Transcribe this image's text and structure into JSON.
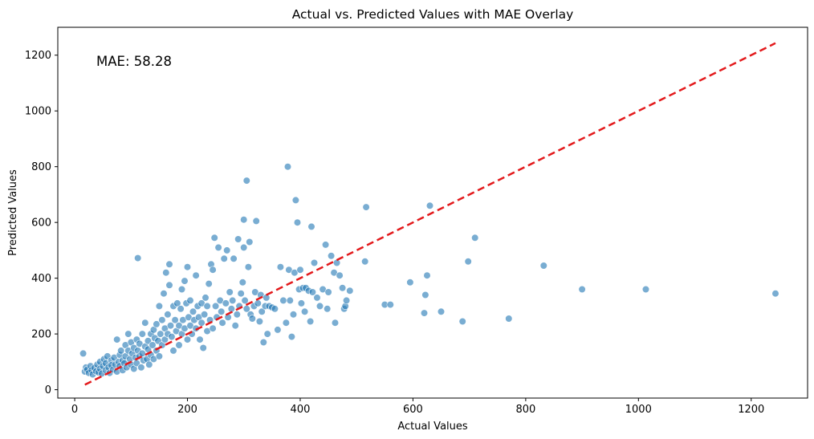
{
  "chart_data": {
    "type": "scatter",
    "title": "Actual vs. Predicted Values with MAE Overlay",
    "xlabel": "Actual Values",
    "ylabel": "Predicted Values",
    "xlim": [
      -30,
      1300
    ],
    "ylim": [
      -30,
      1300
    ],
    "xticks": [
      0,
      200,
      400,
      600,
      800,
      1000,
      1200
    ],
    "yticks": [
      0,
      200,
      400,
      600,
      800,
      1000,
      1200
    ],
    "annotation": "MAE: 58.28",
    "grid": false,
    "colors": {
      "points": "#1f77b4",
      "reference_line": "#e31a1c"
    },
    "reference_line": {
      "style": "dashed",
      "from": [
        18,
        18
      ],
      "to": [
        1243,
        1243
      ]
    },
    "points": [
      [
        15,
        130
      ],
      [
        18,
        65
      ],
      [
        20,
        80
      ],
      [
        22,
        72
      ],
      [
        25,
        60
      ],
      [
        28,
        85
      ],
      [
        30,
        70
      ],
      [
        32,
        55
      ],
      [
        35,
        78
      ],
      [
        38,
        66
      ],
      [
        40,
        90
      ],
      [
        42,
        62
      ],
      [
        45,
        100
      ],
      [
        45,
        75
      ],
      [
        48,
        58
      ],
      [
        50,
        85
      ],
      [
        52,
        110
      ],
      [
        55,
        70
      ],
      [
        55,
        95
      ],
      [
        58,
        120
      ],
      [
        60,
        80
      ],
      [
        62,
        60
      ],
      [
        65,
        105
      ],
      [
        65,
        88
      ],
      [
        68,
        72
      ],
      [
        70,
        115
      ],
      [
        72,
        90
      ],
      [
        75,
        180
      ],
      [
        75,
        65
      ],
      [
        78,
        100
      ],
      [
        80,
        125
      ],
      [
        80,
        85
      ],
      [
        82,
        140
      ],
      [
        85,
        70
      ],
      [
        85,
        105
      ],
      [
        88,
        95
      ],
      [
        90,
        160
      ],
      [
        90,
        120
      ],
      [
        92,
        80
      ],
      [
        95,
        200
      ],
      [
        95,
        140
      ],
      [
        98,
        110
      ],
      [
        100,
        170
      ],
      [
        100,
        90
      ],
      [
        102,
        130
      ],
      [
        105,
        75
      ],
      [
        105,
        150
      ],
      [
        108,
        115
      ],
      [
        110,
        180
      ],
      [
        110,
        95
      ],
      [
        112,
        472
      ],
      [
        112,
        140
      ],
      [
        115,
        120
      ],
      [
        115,
        165
      ],
      [
        118,
        80
      ],
      [
        120,
        200
      ],
      [
        120,
        130
      ],
      [
        122,
        105
      ],
      [
        125,
        155
      ],
      [
        125,
        240
      ],
      [
        128,
        110
      ],
      [
        130,
        175
      ],
      [
        130,
        145
      ],
      [
        132,
        90
      ],
      [
        135,
        200
      ],
      [
        135,
        125
      ],
      [
        138,
        160
      ],
      [
        140,
        110
      ],
      [
        140,
        215
      ],
      [
        142,
        185
      ],
      [
        145,
        140
      ],
      [
        145,
        235
      ],
      [
        148,
        175
      ],
      [
        150,
        120
      ],
      [
        150,
        300
      ],
      [
        152,
        200
      ],
      [
        155,
        160
      ],
      [
        155,
        250
      ],
      [
        158,
        345
      ],
      [
        160,
        220
      ],
      [
        160,
        180
      ],
      [
        162,
        420
      ],
      [
        165,
        200
      ],
      [
        165,
        270
      ],
      [
        168,
        450
      ],
      [
        168,
        375
      ],
      [
        170,
        230
      ],
      [
        172,
        190
      ],
      [
        175,
        300
      ],
      [
        175,
        140
      ],
      [
        178,
        250
      ],
      [
        180,
        210
      ],
      [
        182,
        310
      ],
      [
        185,
        160
      ],
      [
        185,
        230
      ],
      [
        188,
        290
      ],
      [
        190,
        200
      ],
      [
        190,
        360
      ],
      [
        192,
        250
      ],
      [
        195,
        390
      ],
      [
        195,
        220
      ],
      [
        198,
        310
      ],
      [
        200,
        440
      ],
      [
        200,
        180
      ],
      [
        202,
        260
      ],
      [
        205,
        230
      ],
      [
        205,
        320
      ],
      [
        208,
        200
      ],
      [
        210,
        280
      ],
      [
        212,
        250
      ],
      [
        215,
        220
      ],
      [
        215,
        410
      ],
      [
        218,
        300
      ],
      [
        220,
        260
      ],
      [
        222,
        180
      ],
      [
        225,
        240
      ],
      [
        225,
        310
      ],
      [
        228,
        150
      ],
      [
        230,
        270
      ],
      [
        232,
        330
      ],
      [
        235,
        210
      ],
      [
        235,
        300
      ],
      [
        238,
        380
      ],
      [
        240,
        250
      ],
      [
        242,
        450
      ],
      [
        245,
        220
      ],
      [
        245,
        430
      ],
      [
        248,
        545
      ],
      [
        250,
        300
      ],
      [
        252,
        260
      ],
      [
        255,
        510
      ],
      [
        258,
        320
      ],
      [
        260,
        280
      ],
      [
        262,
        240
      ],
      [
        265,
        470
      ],
      [
        268,
        310
      ],
      [
        270,
        500
      ],
      [
        272,
        260
      ],
      [
        275,
        350
      ],
      [
        278,
        290
      ],
      [
        280,
        320
      ],
      [
        282,
        470
      ],
      [
        285,
        230
      ],
      [
        288,
        270
      ],
      [
        290,
        540
      ],
      [
        292,
        300
      ],
      [
        295,
        345
      ],
      [
        298,
        385
      ],
      [
        300,
        610
      ],
      [
        300,
        510
      ],
      [
        302,
        320
      ],
      [
        305,
        750
      ],
      [
        305,
        290
      ],
      [
        308,
        440
      ],
      [
        310,
        530
      ],
      [
        312,
        270
      ],
      [
        315,
        255
      ],
      [
        318,
        300
      ],
      [
        320,
        350
      ],
      [
        322,
        605
      ],
      [
        325,
        310
      ],
      [
        328,
        245
      ],
      [
        330,
        340
      ],
      [
        332,
        280
      ],
      [
        335,
        170
      ],
      [
        338,
        300
      ],
      [
        340,
        330
      ],
      [
        342,
        200
      ],
      [
        345,
        300
      ],
      [
        350,
        295
      ],
      [
        355,
        290
      ],
      [
        360,
        215
      ],
      [
        365,
        440
      ],
      [
        370,
        320
      ],
      [
        375,
        240
      ],
      [
        378,
        800
      ],
      [
        380,
        430
      ],
      [
        382,
        320
      ],
      [
        385,
        190
      ],
      [
        388,
        270
      ],
      [
        390,
        420
      ],
      [
        392,
        680
      ],
      [
        395,
        600
      ],
      [
        398,
        360
      ],
      [
        400,
        430
      ],
      [
        402,
        310
      ],
      [
        405,
        365
      ],
      [
        408,
        280
      ],
      [
        410,
        365
      ],
      [
        415,
        355
      ],
      [
        418,
        245
      ],
      [
        420,
        585
      ],
      [
        422,
        350
      ],
      [
        425,
        455
      ],
      [
        430,
        330
      ],
      [
        435,
        300
      ],
      [
        440,
        360
      ],
      [
        445,
        520
      ],
      [
        448,
        290
      ],
      [
        450,
        350
      ],
      [
        455,
        480
      ],
      [
        460,
        420
      ],
      [
        462,
        240
      ],
      [
        465,
        455
      ],
      [
        470,
        410
      ],
      [
        475,
        365
      ],
      [
        478,
        290
      ],
      [
        480,
        300
      ],
      [
        482,
        320
      ],
      [
        488,
        355
      ],
      [
        515,
        460
      ],
      [
        517,
        655
      ],
      [
        550,
        305
      ],
      [
        560,
        305
      ],
      [
        595,
        385
      ],
      [
        620,
        275
      ],
      [
        622,
        340
      ],
      [
        625,
        410
      ],
      [
        630,
        660
      ],
      [
        650,
        280
      ],
      [
        688,
        245
      ],
      [
        698,
        460
      ],
      [
        710,
        545
      ],
      [
        770,
        255
      ],
      [
        832,
        445
      ],
      [
        900,
        360
      ],
      [
        1013,
        360
      ],
      [
        1243,
        345
      ]
    ]
  }
}
